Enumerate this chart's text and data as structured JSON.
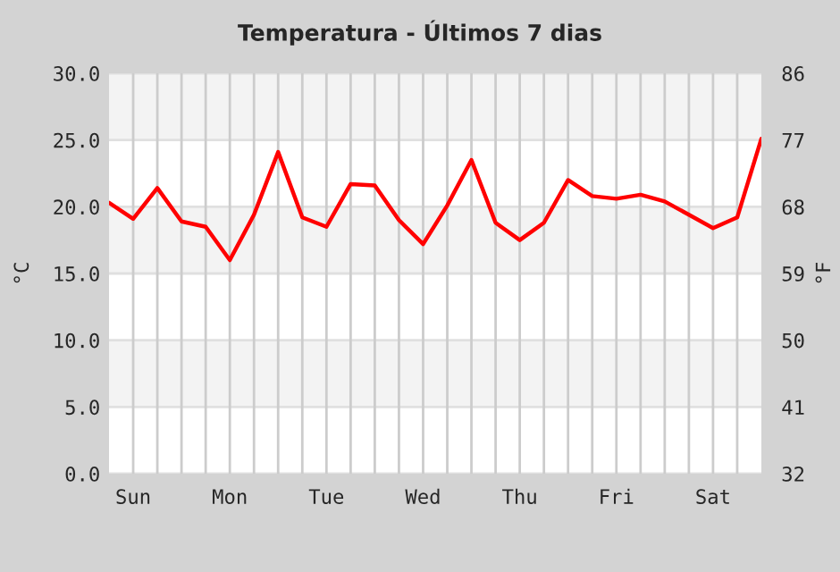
{
  "chart_data": {
    "type": "line",
    "title": "Temperatura - Últimos 7 dias",
    "ylabel": "°C",
    "y2label": "°F",
    "categories": [
      null,
      "Sun",
      null,
      null,
      null,
      "Mon",
      null,
      null,
      null,
      "Tue",
      null,
      null,
      null,
      "Wed",
      null,
      null,
      null,
      "Thu",
      null,
      null,
      null,
      "Fri",
      null,
      null,
      null,
      "Sat",
      null,
      null
    ],
    "series": [
      {
        "color": "#ff0000",
        "values": [
          20.3,
          19.1,
          21.4,
          18.9,
          18.5,
          16.0,
          19.4,
          24.1,
          19.2,
          18.5,
          21.7,
          21.6,
          19.0,
          17.2,
          20.1,
          23.5,
          18.8,
          17.5,
          18.8,
          22.0,
          20.8,
          20.6,
          20.9,
          20.4,
          19.4,
          18.4,
          19.2,
          25.1
        ]
      }
    ],
    "ylim": [
      0,
      30
    ],
    "yticks": [
      {
        "value": 0,
        "label": "0.0"
      },
      {
        "value": 5,
        "label": "5.0"
      },
      {
        "value": 10,
        "label": "10.0"
      },
      {
        "value": 15,
        "label": "15.0"
      },
      {
        "value": 20,
        "label": "20.0"
      },
      {
        "value": 25,
        "label": "25.0"
      },
      {
        "value": 30,
        "label": "30.0"
      }
    ],
    "y2lim": [
      32,
      86
    ],
    "y2ticks": [
      32,
      41,
      50,
      59,
      68,
      77,
      86
    ],
    "grid": true,
    "legend": false,
    "marker": "none",
    "line_style": "solid"
  }
}
